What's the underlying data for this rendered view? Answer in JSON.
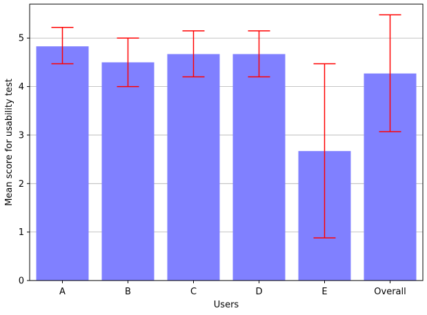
{
  "chart_data": {
    "type": "bar",
    "title": "",
    "xlabel": "Users",
    "ylabel": "Mean score for usability test",
    "categories": [
      "A",
      "B",
      "C",
      "D",
      "E",
      "Overall"
    ],
    "values": [
      4.83,
      4.5,
      4.67,
      4.67,
      2.67,
      4.27
    ],
    "error_low": [
      4.47,
      4.0,
      4.2,
      4.2,
      0.88,
      3.07
    ],
    "error_high": [
      5.22,
      5.0,
      5.15,
      5.15,
      4.47,
      5.48
    ],
    "ylim": [
      0,
      5.7
    ],
    "yticks": [
      0,
      1,
      2,
      3,
      4,
      5
    ],
    "grid": "y",
    "legend": "none",
    "colors": {
      "bar": "#8080ff",
      "error": "#ff0000",
      "grid": "#b0b0b0",
      "axis": "#000000"
    }
  }
}
